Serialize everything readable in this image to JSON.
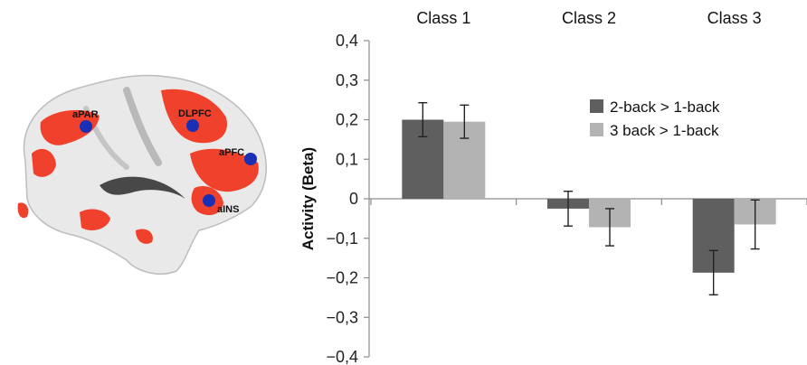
{
  "brain": {
    "regions": [
      {
        "label": "aPAR"
      },
      {
        "label": "DLPFC"
      },
      {
        "label": "aPFC"
      },
      {
        "label": "aINS"
      }
    ]
  },
  "chart_data": {
    "type": "bar",
    "categories": [
      "Class 1",
      "Class 2",
      "Class 3"
    ],
    "category_label_position": "top",
    "series": [
      {
        "name": "2-back > 1-back",
        "color": "#5f5f5f",
        "values": [
          0.2,
          -0.025,
          -0.187
        ],
        "errors": [
          0.043,
          0.044,
          0.056
        ]
      },
      {
        "name": "3 back > 1-back",
        "color": "#b3b3b3",
        "values": [
          0.195,
          -0.072,
          -0.065
        ],
        "errors": [
          0.042,
          0.047,
          0.062
        ]
      }
    ],
    "ylabel": "Activity (Beta)",
    "ylim": [
      -0.4,
      0.4
    ],
    "yticks": [
      0.4,
      0.3,
      0.2,
      0.1,
      0,
      -0.1,
      -0.2,
      -0.3,
      -0.4
    ],
    "ytick_labels": [
      "0,4",
      "0,3",
      "0,2",
      "0,1",
      "0",
      "−0,1",
      "−0,2",
      "−0,3",
      "−0,4"
    ],
    "legend_position": "top-right",
    "grid": false
  }
}
